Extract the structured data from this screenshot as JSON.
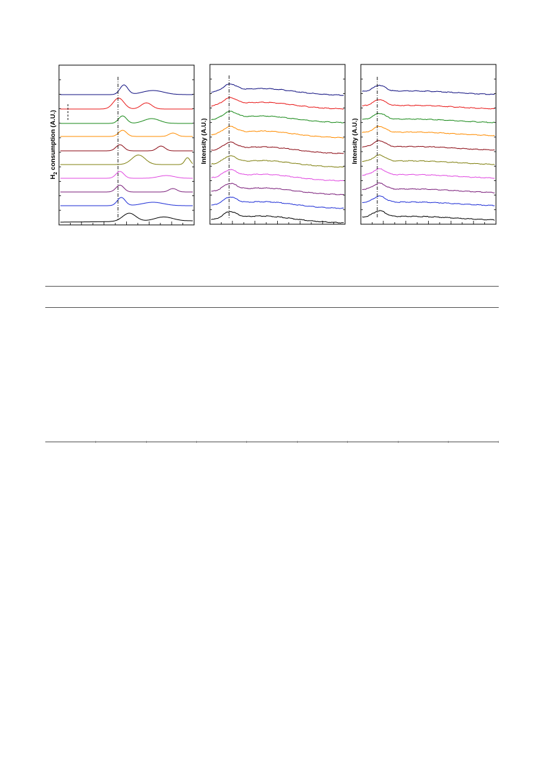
{
  "colors": {
    "series": [
      "#000000",
      "#1f2fd6",
      "#7b1f7b",
      "#e04ae0",
      "#808010",
      "#8b0a14",
      "#ff8c00",
      "#1a8a1a",
      "#e81818",
      "#101080"
    ],
    "rule": "#555555"
  },
  "chart_data": [
    {
      "type": "line",
      "ylabel_main": "H",
      "ylabel_sub": "2",
      "ylabel_rest": " consumption (A.U.)",
      "grid": false,
      "stacked_offset": true,
      "reference_line": "dash-dot vertical at main reduction peak",
      "marker": "short dashed mark at upper left",
      "series_count": 10
    },
    {
      "type": "line",
      "ylabel": "Intensity (A.U.)",
      "grid": false,
      "stacked_offset": true,
      "reference_line": "dash-dot vertical at first peak",
      "series_count": 10
    },
    {
      "type": "line",
      "ylabel": "Intensity (A.U.)",
      "grid": false,
      "stacked_offset": true,
      "reference_line": "dash-dot vertical at first peak",
      "series_count": 10
    }
  ],
  "table": {
    "rows_visible": 0,
    "columns_visible": 9
  }
}
